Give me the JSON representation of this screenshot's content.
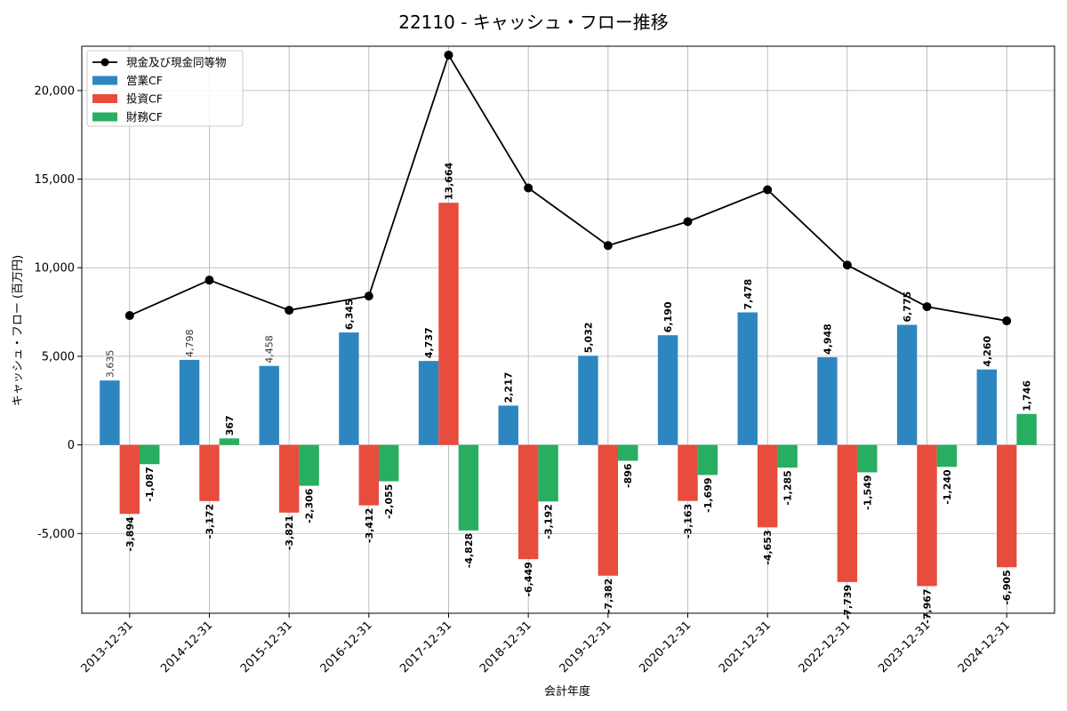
{
  "chart_data": {
    "type": "bar",
    "title": "22110 - キャッシュ・フロー推移",
    "xlabel": "会計年度",
    "ylabel": "キャッシュ・フロー (百万円)",
    "ylim": [
      -9500,
      22500
    ],
    "yticks": [
      -5000,
      0,
      5000,
      10000,
      15000,
      20000
    ],
    "ytick_labels": [
      "-5,000",
      "0",
      "5,000",
      "10,000",
      "15,000",
      "20,000"
    ],
    "grid": true,
    "legend_position": "top-left",
    "categories": [
      "2013-12-31",
      "2014-12-31",
      "2015-12-31",
      "2016-12-31",
      "2017-12-31",
      "2018-12-31",
      "2019-12-31",
      "2020-12-31",
      "2021-12-31",
      "2022-12-31",
      "2023-12-31",
      "2024-12-31"
    ],
    "series": [
      {
        "name": "営業CF",
        "kind": "bar",
        "color": "#2e86c1",
        "values": [
          3635,
          4798,
          4458,
          6345,
          4737,
          2217,
          5032,
          6190,
          7478,
          4948,
          6775,
          4260
        ],
        "labels": [
          "3,635",
          "4,798",
          "4,458",
          "6,345",
          "4,737",
          "2,217",
          "5,032",
          "6,190",
          "7,478",
          "4,948",
          "6,775",
          "4,260"
        ]
      },
      {
        "name": "投資CF",
        "kind": "bar",
        "color": "#e74c3c",
        "values": [
          -3894,
          -3172,
          -3821,
          -3412,
          13664,
          -6449,
          -7382,
          -3163,
          -4653,
          -7739,
          -7967,
          -6905
        ],
        "labels": [
          "-3,894",
          "-3,172",
          "-3,821",
          "-3,412",
          "13,664",
          "-6,449",
          "-7,382",
          "-3,163",
          "-4,653",
          "-7,739",
          "-7,967",
          "-6,905"
        ]
      },
      {
        "name": "財務CF",
        "kind": "bar",
        "color": "#27ae60",
        "values": [
          -1087,
          367,
          -2306,
          -2055,
          -4828,
          -3192,
          -896,
          -1699,
          -1285,
          -1549,
          -1240,
          1746
        ],
        "labels": [
          "-1,087",
          "367",
          "-2,306",
          "-2,055",
          "-4,828",
          "-3,192",
          "-896",
          "-1,699",
          "-1,285",
          "-1,549",
          "-1,240",
          "1,746"
        ]
      },
      {
        "name": "現金及び現金同等物",
        "kind": "line",
        "color": "#000000",
        "values": [
          7300,
          9300,
          7600,
          8400,
          22000,
          14500,
          11250,
          12600,
          14400,
          10150,
          7800,
          7000
        ]
      }
    ],
    "light_label_indices": [
      0,
      1,
      2
    ]
  }
}
